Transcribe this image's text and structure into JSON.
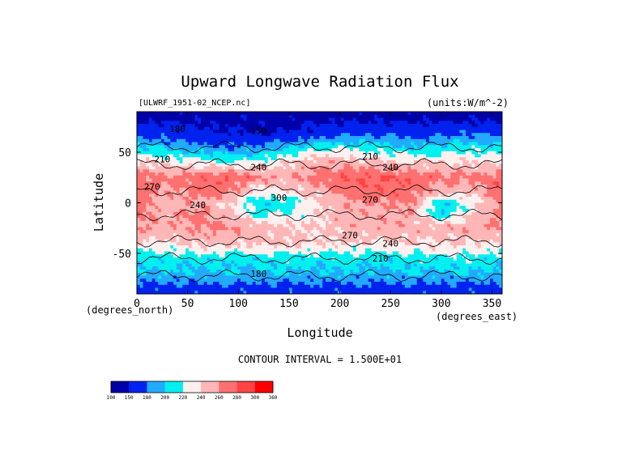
{
  "chart_data": {
    "type": "heatmap",
    "title": "Upward Longwave Radiation Flux",
    "file_label": "[ULWRF_1951-02_NCEP.nc]",
    "units_label": "(units:W/m^-2)",
    "xlabel": "Longitude",
    "ylabel": "Latitude",
    "x_unit_label": "(degrees_east)",
    "y_unit_label": "(degrees_north)",
    "xlim": [
      0,
      360
    ],
    "ylim": [
      -90,
      90
    ],
    "x_ticks": [
      0,
      50,
      100,
      150,
      200,
      250,
      300,
      350
    ],
    "y_ticks": [
      50,
      0,
      -50
    ],
    "contour_interval_text": "CONTOUR INTERVAL = 1.500E+01",
    "contour_labels": [
      "150",
      "180",
      "210",
      "240",
      "270",
      "300"
    ],
    "colorbar": {
      "boundaries": [
        100,
        150,
        180,
        200,
        220,
        240,
        260,
        280,
        300,
        360
      ],
      "labels": [
        "100",
        "150",
        "180",
        "200",
        "220",
        "240",
        "260",
        "280",
        "300",
        "360"
      ],
      "colors": [
        "#0000a8",
        "#0022ee",
        "#22aaff",
        "#00f0f0",
        "#fff0f0",
        "#ffb6b6",
        "#ff7070",
        "#ff4444",
        "#ff0000"
      ]
    },
    "field_grid": {
      "lon_step": 30,
      "lats": [
        85,
        70,
        55,
        40,
        25,
        10,
        0,
        -10,
        -25,
        -40,
        -55,
        -70,
        -85
      ],
      "values": [
        [
          140,
          140,
          140,
          140,
          140,
          140,
          140,
          140,
          140,
          140,
          140,
          140,
          140
        ],
        [
          170,
          165,
          160,
          150,
          145,
          150,
          160,
          170,
          170,
          165,
          170,
          175,
          170
        ],
        [
          205,
          195,
          185,
          180,
          185,
          200,
          215,
          215,
          210,
          200,
          205,
          210,
          205
        ],
        [
          240,
          235,
          230,
          220,
          225,
          240,
          255,
          250,
          245,
          240,
          240,
          240,
          240
        ],
        [
          270,
          265,
          270,
          280,
          265,
          255,
          270,
          280,
          280,
          275,
          265,
          265,
          270
        ],
        [
          275,
          255,
          270,
          265,
          225,
          235,
          250,
          270,
          275,
          270,
          245,
          245,
          275
        ],
        [
          265,
          250,
          255,
          240,
          205,
          210,
          240,
          260,
          260,
          265,
          200,
          230,
          265
        ],
        [
          270,
          250,
          270,
          245,
          215,
          220,
          240,
          255,
          255,
          255,
          200,
          240,
          270
        ],
        [
          260,
          255,
          260,
          265,
          250,
          245,
          240,
          250,
          255,
          250,
          255,
          255,
          260
        ],
        [
          240,
          235,
          245,
          245,
          245,
          245,
          240,
          240,
          240,
          240,
          240,
          240,
          240
        ],
        [
          205,
          210,
          210,
          205,
          210,
          210,
          210,
          210,
          205,
          210,
          215,
          215,
          205
        ],
        [
          195,
          200,
          195,
          200,
          195,
          200,
          195,
          200,
          195,
          200,
          195,
          200,
          195
        ],
        [
          170,
          170,
          170,
          170,
          170,
          170,
          170,
          170,
          170,
          170,
          170,
          170,
          170
        ]
      ]
    }
  }
}
